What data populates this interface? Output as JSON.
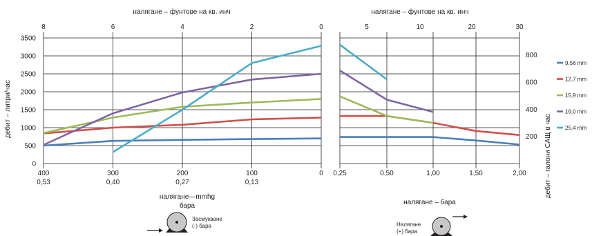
{
  "chart_data": [
    {
      "type": "line",
      "top_axis_label": "налягане – фунтове на кв. инч",
      "top_ticks": [
        "8",
        "6",
        "4",
        "2",
        "0"
      ],
      "y_label": "дебит – литри/час",
      "y_ticks": [
        "0",
        "500",
        "1000",
        "1500",
        "2000",
        "2500",
        "3000",
        "3500"
      ],
      "ylim": [
        0,
        3500
      ],
      "x_ticks_mmhg": [
        "400",
        "300",
        "200",
        "100",
        "0"
      ],
      "x_ticks_bar": [
        "0,53",
        "0,40",
        "0,27",
        "0,13"
      ],
      "xlabel": "налягане—mmhg",
      "xlabel2": "бара",
      "x_unit": "mmHg",
      "xlim": [
        400,
        0
      ],
      "series": [
        {
          "name": "9,56 mm",
          "color": "#4a7ebb",
          "x": [
            400,
            300,
            200,
            100,
            0
          ],
          "y": [
            500,
            630,
            660,
            680,
            700
          ]
        },
        {
          "name": "12,7 mm",
          "color": "#d0504a",
          "x": [
            400,
            300,
            200,
            100,
            0
          ],
          "y": [
            840,
            1000,
            1080,
            1230,
            1280
          ]
        },
        {
          "name": "15,9 mm",
          "color": "#9bbb59",
          "x": [
            400,
            300,
            200,
            100,
            0
          ],
          "y": [
            850,
            1280,
            1580,
            1700,
            1800
          ]
        },
        {
          "name": "19,0 mm",
          "color": "#8064a2",
          "x": [
            400,
            300,
            200,
            100,
            0
          ],
          "y": [
            520,
            1400,
            1980,
            2340,
            2500
          ]
        },
        {
          "name": "25,4 mm",
          "color": "#4bacc6",
          "x": [
            300,
            200,
            100,
            0
          ],
          "y": [
            320,
            1500,
            2800,
            3280
          ]
        }
      ],
      "diagram_label": "Засмукване (-) бара"
    },
    {
      "type": "line",
      "top_axis_label": "налягане – фунтове на кв. инч",
      "top_ticks": [
        "5",
        "10",
        "20",
        "30"
      ],
      "y2_label": "дебит – галони САЩ в час",
      "y2_ticks": [
        "200",
        "400",
        "600",
        "800"
      ],
      "ylim_gal": [
        0,
        925
      ],
      "x_ticks": [
        "0,25",
        "0,50",
        "1,00",
        "1,50",
        "2,00"
      ],
      "xlabel": "налягане – бара",
      "series": [
        {
          "name": "9,56 mm",
          "color": "#4a7ebb",
          "x": [
            0.25,
            0.5,
            1.0,
            1.5,
            2.0
          ],
          "y": [
            195,
            195,
            195,
            170,
            140
          ]
        },
        {
          "name": "12,7 mm",
          "color": "#d0504a",
          "x": [
            0.25,
            0.5,
            1.0,
            1.5,
            2.0
          ],
          "y": [
            350,
            350,
            300,
            240,
            210
          ]
        },
        {
          "name": "15,9 mm",
          "color": "#9bbb59",
          "x": [
            0.25,
            0.5,
            1.0
          ],
          "y": [
            495,
            350,
            300
          ]
        },
        {
          "name": "19,0 mm",
          "color": "#8064a2",
          "x": [
            0.25,
            0.5,
            1.0
          ],
          "y": [
            685,
            470,
            380
          ]
        },
        {
          "name": "25,4 mm",
          "color": "#4bacc6",
          "x": [
            0.25,
            0.5
          ],
          "y": [
            875,
            620
          ]
        }
      ],
      "diagram_label": "Налягане (+) бара"
    }
  ],
  "legend": [
    {
      "label": "9,56 mm",
      "color": "#4a7ebb"
    },
    {
      "label": "12,7 mm",
      "color": "#d0504a"
    },
    {
      "label": "15,9 mm",
      "color": "#9bbb59"
    },
    {
      "label": "19,0 mm",
      "color": "#8064a2"
    },
    {
      "label": "25,4 mm",
      "color": "#4bacc6"
    }
  ]
}
